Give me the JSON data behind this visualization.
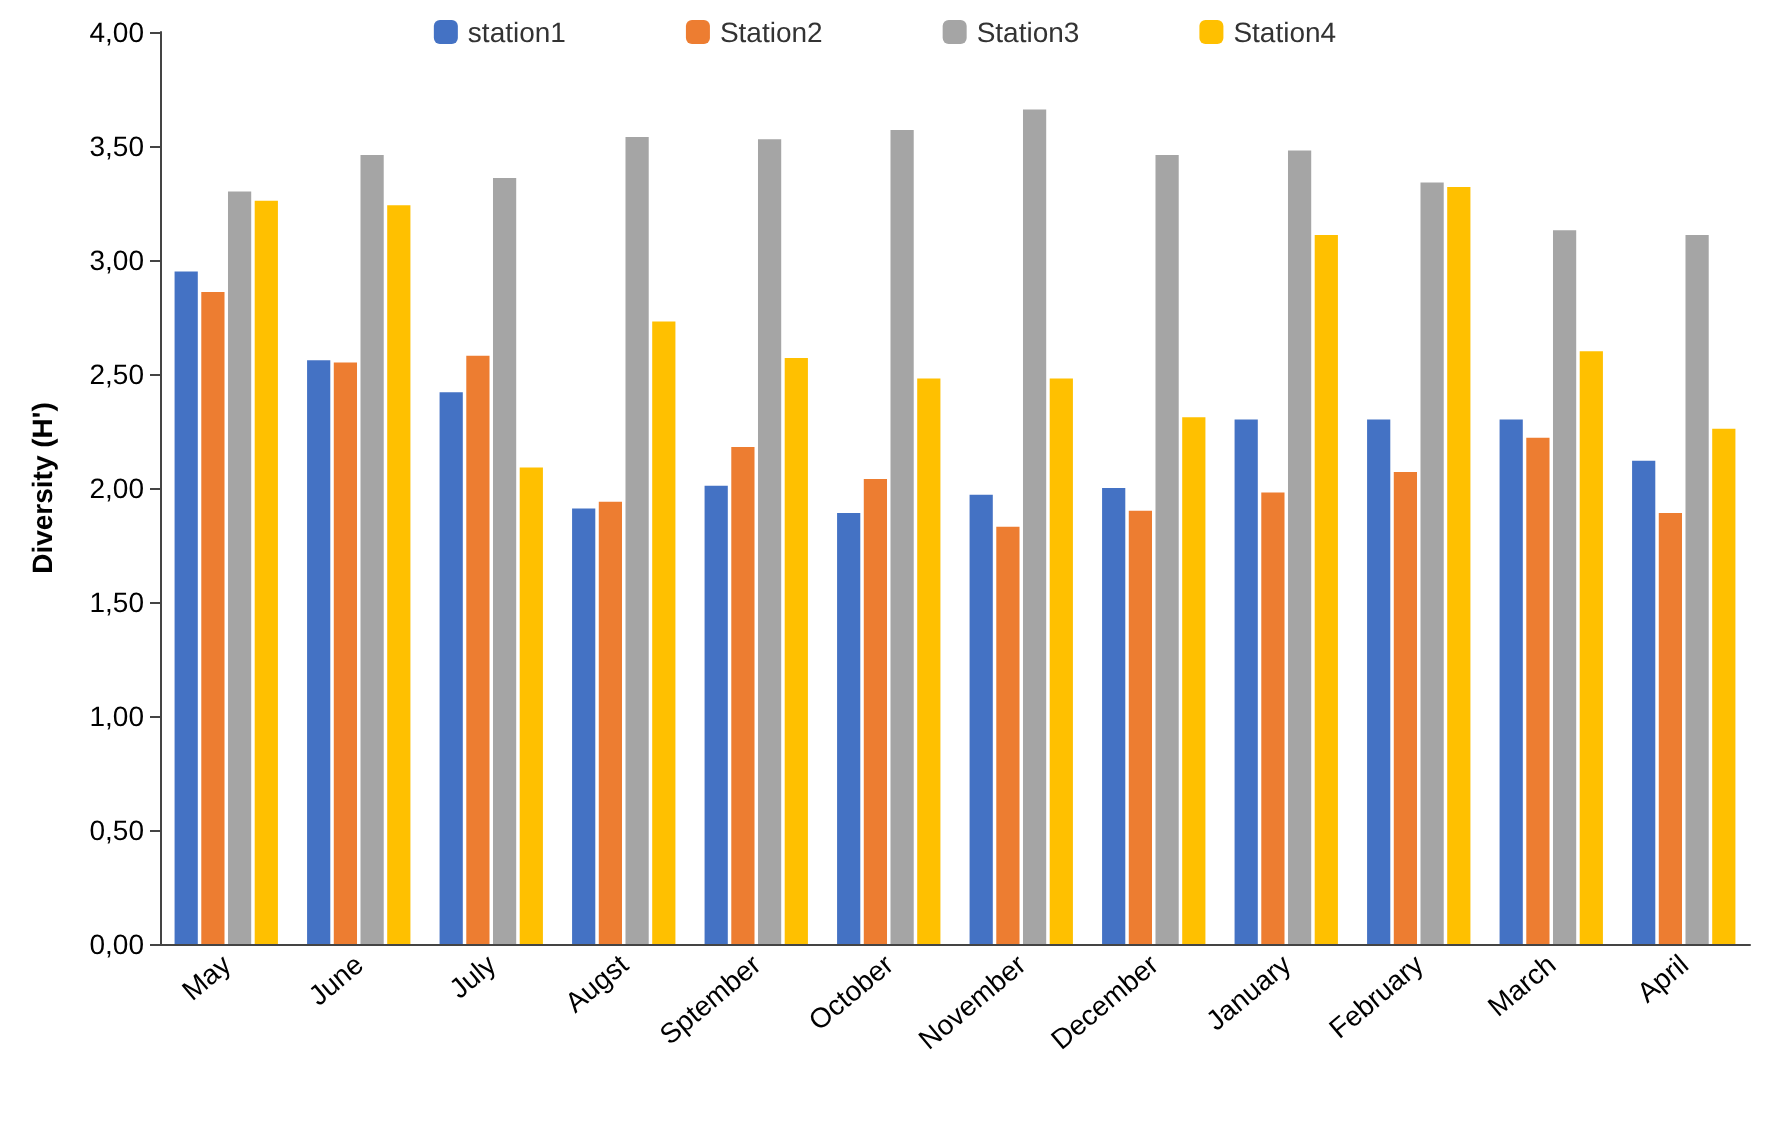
{
  "chart_data": {
    "type": "bar",
    "ylabel": "Diversity (H')",
    "categories": [
      "May",
      "June",
      "July",
      "Augst",
      "Sptember",
      "October",
      "November",
      "December",
      "January",
      "February",
      "March",
      "April"
    ],
    "series": [
      {
        "name": "station1",
        "color": "#4472c4",
        "values": [
          2.95,
          2.56,
          2.42,
          1.91,
          2.01,
          1.89,
          1.97,
          2.0,
          2.3,
          2.3,
          2.3,
          2.12
        ]
      },
      {
        "name": "Station2",
        "color": "#ed7d31",
        "values": [
          2.86,
          2.55,
          2.58,
          1.94,
          2.18,
          2.04,
          1.83,
          1.9,
          1.98,
          2.07,
          2.22,
          1.89
        ]
      },
      {
        "name": "Station3",
        "color": "#a5a5a5",
        "values": [
          3.3,
          3.46,
          3.36,
          3.54,
          3.53,
          3.57,
          3.66,
          3.46,
          3.48,
          3.34,
          3.13,
          3.11
        ]
      },
      {
        "name": "Station4",
        "color": "#ffc000",
        "values": [
          3.26,
          3.24,
          2.09,
          2.73,
          2.57,
          2.48,
          2.48,
          2.31,
          3.11,
          3.32,
          2.6,
          2.26
        ]
      }
    ],
    "ylim": [
      0,
      4
    ],
    "yticks": [
      {
        "value": 0,
        "label": "0,00"
      },
      {
        "value": 0.5,
        "label": "0,50"
      },
      {
        "value": 1,
        "label": "1,00"
      },
      {
        "value": 1.5,
        "label": "1,50"
      },
      {
        "value": 2,
        "label": "2,00"
      },
      {
        "value": 2.5,
        "label": "2,50"
      },
      {
        "value": 3,
        "label": "3,00"
      },
      {
        "value": 3.5,
        "label": "3,50"
      },
      {
        "value": 4,
        "label": "4,00"
      }
    ],
    "grid": false,
    "legend": "top"
  }
}
